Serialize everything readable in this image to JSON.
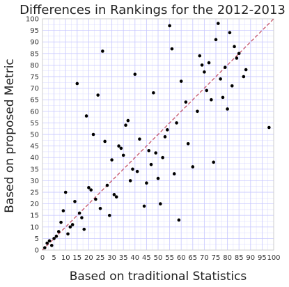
{
  "chart_data": {
    "type": "scatter",
    "title": "Differences in Rankings for the 2012-2013",
    "xlabel": "Based on traditional Statistics",
    "ylabel": "Based on proposed Metric",
    "xlim": [
      0,
      100
    ],
    "ylim": [
      0,
      100
    ],
    "xticks": [
      0,
      5,
      10,
      15,
      20,
      25,
      30,
      35,
      40,
      45,
      50,
      55,
      60,
      65,
      70,
      75,
      80,
      85,
      90,
      95,
      100
    ],
    "yticks": [
      0,
      5,
      10,
      15,
      20,
      25,
      30,
      35,
      40,
      45,
      50,
      55,
      60,
      65,
      70,
      75,
      80,
      85,
      90,
      95,
      100
    ],
    "grid": true,
    "grid_color": "#c8c8ff",
    "point_color": "#000000",
    "reference_line": {
      "from": [
        0,
        0
      ],
      "to": [
        100,
        100
      ],
      "color": "#c0435a",
      "style": "dashed"
    },
    "points": [
      [
        1,
        1
      ],
      [
        2,
        3
      ],
      [
        3,
        4
      ],
      [
        4,
        2
      ],
      [
        5,
        5
      ],
      [
        6,
        6
      ],
      [
        7,
        8
      ],
      [
        8,
        12
      ],
      [
        9,
        17
      ],
      [
        10,
        25
      ],
      [
        11,
        7
      ],
      [
        12,
        10
      ],
      [
        13,
        11
      ],
      [
        14,
        21
      ],
      [
        15,
        72
      ],
      [
        16,
        16
      ],
      [
        17,
        14
      ],
      [
        18,
        9
      ],
      [
        19,
        58
      ],
      [
        20,
        27
      ],
      [
        21,
        26
      ],
      [
        22,
        50
      ],
      [
        23,
        22
      ],
      [
        24,
        67
      ],
      [
        25,
        18
      ],
      [
        26,
        86
      ],
      [
        27,
        47
      ],
      [
        28,
        28
      ],
      [
        29,
        15
      ],
      [
        30,
        39
      ],
      [
        31,
        24
      ],
      [
        32,
        23
      ],
      [
        33,
        45
      ],
      [
        34,
        44
      ],
      [
        35,
        41
      ],
      [
        36,
        54
      ],
      [
        37,
        56
      ],
      [
        38,
        30
      ],
      [
        39,
        35
      ],
      [
        40,
        76
      ],
      [
        41,
        34
      ],
      [
        42,
        48
      ],
      [
        44,
        19
      ],
      [
        45,
        29
      ],
      [
        46,
        43
      ],
      [
        47,
        37
      ],
      [
        48,
        68
      ],
      [
        49,
        42
      ],
      [
        50,
        31
      ],
      [
        51,
        20
      ],
      [
        52,
        40
      ],
      [
        53,
        49
      ],
      [
        54,
        52
      ],
      [
        55,
        97
      ],
      [
        56,
        87
      ],
      [
        57,
        33
      ],
      [
        58,
        55
      ],
      [
        59,
        13
      ],
      [
        60,
        73
      ],
      [
        62,
        64
      ],
      [
        63,
        46
      ],
      [
        65,
        36
      ],
      [
        67,
        60
      ],
      [
        68,
        84
      ],
      [
        69,
        80
      ],
      [
        70,
        77
      ],
      [
        71,
        69
      ],
      [
        72,
        81
      ],
      [
        73,
        65
      ],
      [
        74,
        38
      ],
      [
        75,
        91
      ],
      [
        76,
        98
      ],
      [
        77,
        74
      ],
      [
        78,
        66
      ],
      [
        79,
        79
      ],
      [
        80,
        61
      ],
      [
        81,
        94
      ],
      [
        82,
        71
      ],
      [
        83,
        88
      ],
      [
        84,
        83
      ],
      [
        85,
        85
      ],
      [
        87,
        75
      ],
      [
        88,
        78
      ],
      [
        98,
        53
      ]
    ]
  }
}
